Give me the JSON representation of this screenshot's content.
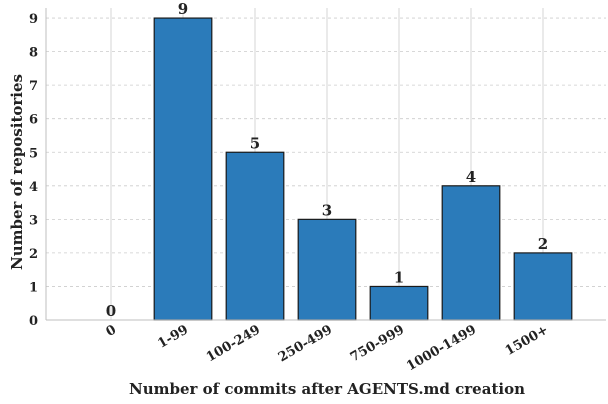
{
  "chart_data": {
    "type": "bar",
    "title": "",
    "xlabel": "Number of commits after AGENTS.md creation",
    "ylabel": "Number of repositories",
    "categories": [
      "0",
      "1-99",
      "100-249",
      "250-499",
      "750-999",
      "1000-1499",
      "1500+"
    ],
    "values": [
      0,
      9,
      5,
      3,
      1,
      4,
      2
    ],
    "ylim": [
      0,
      9.3
    ],
    "yticks": [
      "0",
      "1",
      "2",
      "3",
      "4",
      "5",
      "6",
      "7",
      "8",
      "9"
    ],
    "grid": true,
    "legend": "none",
    "bar_color": "#2b7bba",
    "bar_edge_color": "#1a1a1a",
    "grid_color": "#cccccc",
    "text_color": "#222222"
  }
}
